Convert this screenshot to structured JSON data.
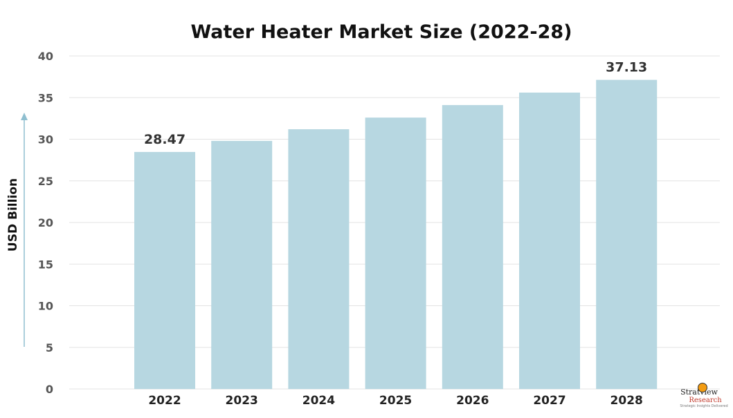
{
  "chart_data": {
    "type": "bar",
    "title": "Water Heater Market Size (2022-28)",
    "xlabel": "",
    "ylabel": "USD Billion",
    "categories": [
      "2022",
      "2023",
      "2024",
      "2025",
      "2026",
      "2027",
      "2028"
    ],
    "values": [
      28.47,
      29.8,
      31.2,
      32.6,
      34.1,
      35.6,
      37.13
    ],
    "data_labels": {
      "2022": "28.47",
      "2028": "37.13"
    },
    "ylim": [
      0,
      40
    ],
    "yticks": [
      0,
      5,
      10,
      15,
      20,
      25,
      30,
      35,
      40
    ],
    "grid": true,
    "bar_color": "#b7d7e1",
    "grid_color": "#e3e3e3",
    "arrow_color": "#8fbfd0"
  },
  "logo": {
    "line1": "Stratview",
    "line2": "Research",
    "tagline": "Strategic Insights Delivered"
  }
}
